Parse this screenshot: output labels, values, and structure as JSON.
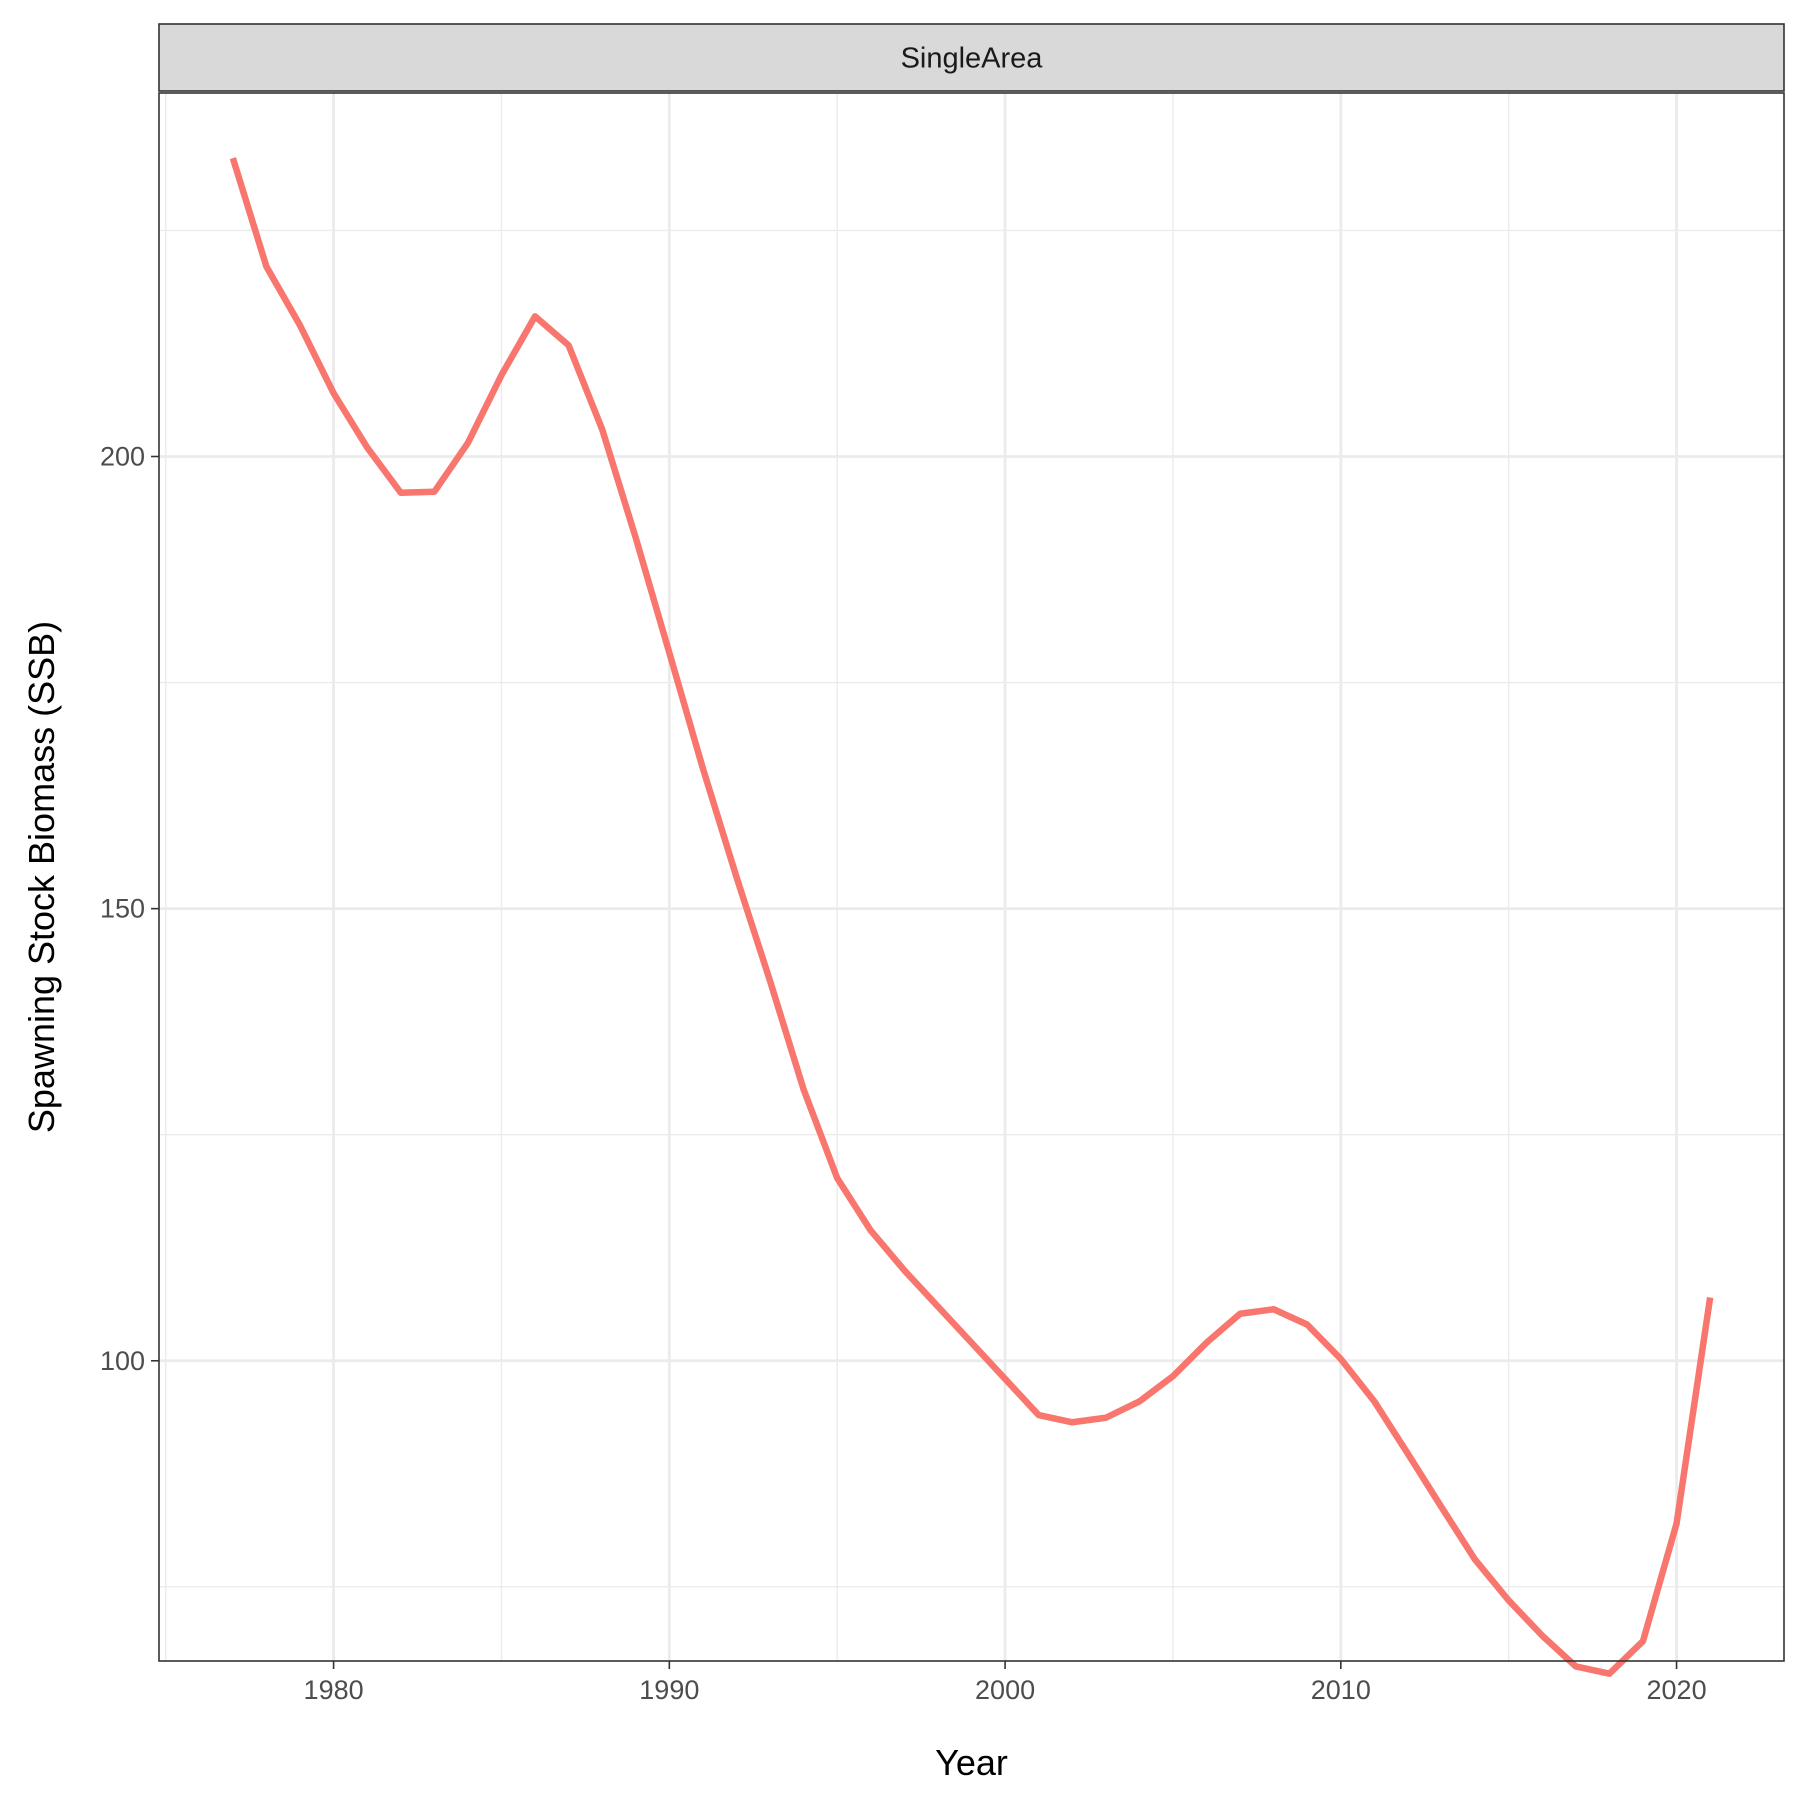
{
  "chart_data": {
    "type": "line",
    "facet_label": "SingleArea",
    "xlabel": "Year",
    "ylabel": "Spawning Stock Biomass (SSB)",
    "xlim": [
      1974.8,
      2023.2
    ],
    "ylim": [
      66.8,
      240.2
    ],
    "x_ticks": [
      1980,
      1990,
      2000,
      2010,
      2020
    ],
    "x_minor_ticks": [
      1975,
      1985,
      1995,
      2005,
      2015
    ],
    "y_ticks": [
      100,
      150,
      200
    ],
    "y_minor_ticks": [
      75,
      125,
      175,
      225
    ],
    "grid": true,
    "series": [
      {
        "color": "#F8766D",
        "x": [
          1977,
          1978,
          1979,
          1980,
          1981,
          1982,
          1983,
          1984,
          1985,
          1986,
          1987,
          1988,
          1989,
          1990,
          1991,
          1992,
          1993,
          1994,
          1995,
          1996,
          1997,
          1998,
          1999,
          2000,
          2001,
          2002,
          2003,
          2004,
          2005,
          2006,
          2007,
          2008,
          2009,
          2010,
          2011,
          2012,
          2013,
          2014,
          2015,
          2016,
          2017,
          2018,
          2019,
          2020,
          2021
        ],
        "y": [
          233,
          221,
          214.5,
          207,
          201,
          196,
          196.1,
          201.5,
          209,
          215.5,
          212.3,
          203,
          191,
          178.3,
          165.5,
          153.5,
          142,
          130,
          120.2,
          114.4,
          110,
          106,
          102,
          98,
          94,
          93.2,
          93.7,
          95.5,
          98.3,
          102,
          105.2,
          105.7,
          104,
          100.2,
          95.5,
          89.7,
          83.8,
          78,
          73.5,
          69.6,
          66.2,
          65.4,
          69,
          82,
          107
        ]
      }
    ]
  }
}
